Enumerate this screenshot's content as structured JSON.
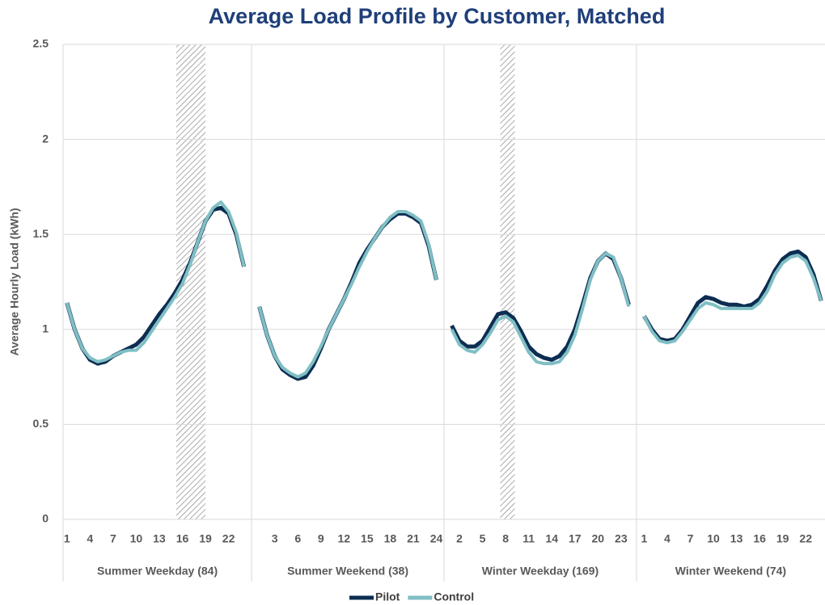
{
  "chart_data": {
    "type": "line",
    "title": "Average Load Profile by Customer, Matched",
    "y_label": "Average Hourly Load (kWh)",
    "groups": [
      "Summer Weekday (84)",
      "Summer Weekend (38)",
      "Winter Weekday (169)",
      "Winter Weekend (74)"
    ],
    "categories": [
      "1",
      null,
      null,
      "4",
      null,
      null,
      "7",
      null,
      null,
      "10",
      null,
      null,
      "13",
      null,
      null,
      "16",
      null,
      null,
      "19",
      null,
      null,
      "22",
      null,
      null,
      null,
      null,
      null,
      "3",
      null,
      null,
      "6",
      null,
      null,
      "9",
      null,
      null,
      "12",
      null,
      null,
      "15",
      null,
      null,
      "18",
      null,
      null,
      "21",
      null,
      null,
      "24",
      null,
      null,
      "2",
      null,
      null,
      "5",
      null,
      null,
      "8",
      null,
      null,
      "11",
      null,
      null,
      "14",
      null,
      null,
      "17",
      null,
      null,
      "20",
      null,
      null,
      "23",
      null,
      null,
      "1",
      null,
      null,
      "4",
      null,
      null,
      "7",
      null,
      null,
      "10",
      null,
      null,
      "13",
      null,
      null,
      "16",
      null,
      null,
      "19",
      null,
      null,
      "22",
      null,
      null
    ],
    "series": [
      {
        "name": "Pilot",
        "color": "#0d2d52",
        "values": [
          1.14,
          1.0,
          0.9,
          0.84,
          0.82,
          0.83,
          0.86,
          0.88,
          0.9,
          0.92,
          0.96,
          1.02,
          1.08,
          1.13,
          1.19,
          1.26,
          1.35,
          1.46,
          1.57,
          1.63,
          1.64,
          1.61,
          1.5,
          1.33,
          null,
          1.12,
          0.97,
          0.86,
          0.79,
          0.76,
          0.74,
          0.75,
          0.81,
          0.9,
          1.0,
          1.08,
          1.16,
          1.25,
          1.35,
          1.42,
          1.48,
          1.54,
          1.58,
          1.61,
          1.61,
          1.59,
          1.56,
          1.44,
          1.26,
          null,
          1.02,
          0.94,
          0.91,
          0.91,
          0.94,
          1.01,
          1.08,
          1.09,
          1.06,
          0.99,
          0.91,
          0.87,
          0.85,
          0.84,
          0.86,
          0.91,
          1.0,
          1.13,
          1.27,
          1.36,
          1.4,
          1.37,
          1.27,
          1.13,
          null,
          1.07,
          1.0,
          0.95,
          0.94,
          0.95,
          1.0,
          1.07,
          1.14,
          1.17,
          1.16,
          1.14,
          1.13,
          1.13,
          1.12,
          1.13,
          1.16,
          1.23,
          1.31,
          1.37,
          1.4,
          1.41,
          1.38,
          1.29,
          1.15
        ]
      },
      {
        "name": "Control",
        "color": "#7fbfc4",
        "values": [
          1.14,
          1.0,
          0.9,
          0.85,
          0.83,
          0.84,
          0.86,
          0.88,
          0.89,
          0.89,
          0.93,
          0.99,
          1.05,
          1.11,
          1.17,
          1.24,
          1.34,
          1.46,
          1.57,
          1.64,
          1.67,
          1.62,
          1.51,
          1.33,
          null,
          1.12,
          0.97,
          0.86,
          0.8,
          0.77,
          0.75,
          0.77,
          0.83,
          0.91,
          1.0,
          1.08,
          1.16,
          1.24,
          1.33,
          1.41,
          1.48,
          1.54,
          1.59,
          1.62,
          1.62,
          1.6,
          1.57,
          1.45,
          1.26,
          null,
          1.0,
          0.92,
          0.89,
          0.88,
          0.92,
          0.98,
          1.05,
          1.07,
          1.04,
          0.96,
          0.88,
          0.83,
          0.82,
          0.82,
          0.83,
          0.88,
          0.97,
          1.11,
          1.26,
          1.36,
          1.4,
          1.38,
          1.27,
          1.12,
          null,
          1.07,
          0.99,
          0.94,
          0.93,
          0.94,
          0.99,
          1.05,
          1.11,
          1.14,
          1.13,
          1.11,
          1.11,
          1.11,
          1.11,
          1.11,
          1.14,
          1.2,
          1.29,
          1.35,
          1.38,
          1.39,
          1.36,
          1.27,
          1.15
        ]
      }
    ],
    "ylim": [
      0,
      2.5
    ],
    "yticks": [
      0,
      0.5,
      1,
      1.5,
      2,
      2.5
    ],
    "grid": true,
    "legend": "bottom"
  }
}
